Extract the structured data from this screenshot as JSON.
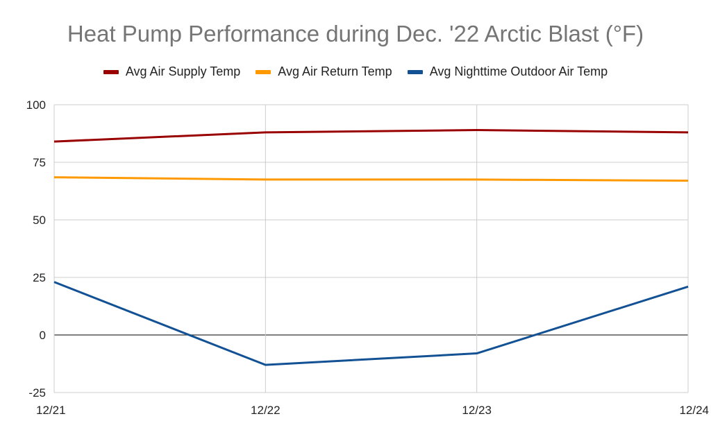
{
  "chart_data": {
    "type": "line",
    "title": "Heat Pump Performance during Dec. '22 Arctic Blast (°F)",
    "categories": [
      "12/21",
      "12/22",
      "12/23",
      "12/24"
    ],
    "ylim": [
      -25,
      100
    ],
    "yticks": [
      "100",
      "75",
      "50",
      "25",
      "0",
      "-25"
    ],
    "ytick_values": [
      100,
      75,
      50,
      25,
      0,
      -25
    ],
    "grid": true,
    "legend_position": "top",
    "series": [
      {
        "name": "Avg Air Supply Temp",
        "color": "#990000",
        "values": [
          84,
          88,
          89,
          88
        ]
      },
      {
        "name": "Avg Air Return Temp",
        "color": "#ff9900",
        "values": [
          68.5,
          67.5,
          67.5,
          67
        ]
      },
      {
        "name": "Avg Nighttime Outdoor Air Temp",
        "color": "#125194",
        "values": [
          23,
          -13,
          -8,
          21
        ]
      }
    ]
  }
}
